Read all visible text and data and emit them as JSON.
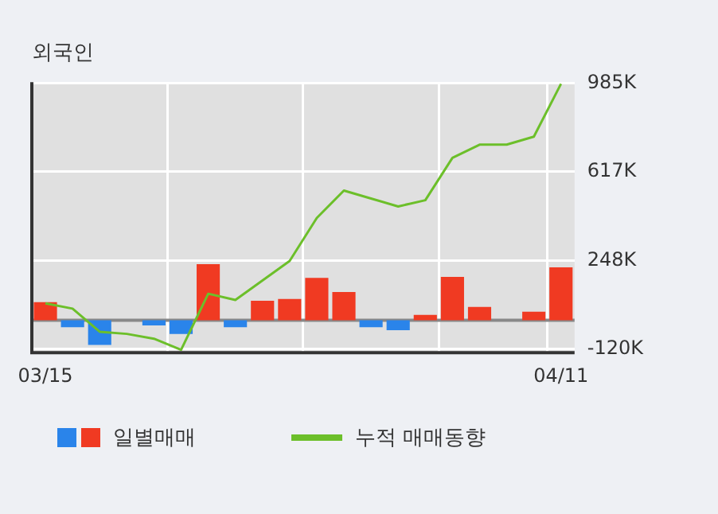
{
  "chart_data": {
    "type": "bar",
    "title": "외국인",
    "categories": [
      "03/15",
      null,
      null,
      null,
      null,
      null,
      null,
      null,
      null,
      null,
      null,
      null,
      null,
      null,
      null,
      null,
      null,
      null,
      null,
      "04/11"
    ],
    "series": [
      {
        "name": "일별매매",
        "values": [
          75,
          -29,
          -103,
          0,
          -22,
          -57,
          233,
          -29,
          81,
          88,
          176,
          117,
          -29,
          -42,
          22,
          180,
          55,
          0,
          35,
          220
        ],
        "colors": [
          "#f03a22",
          "#2a84ea",
          "#2a84ea",
          "#2a84ea",
          "#2a84ea",
          "#2a84ea",
          "#f03a22",
          "#2a84ea",
          "#f03a22",
          "#f03a22",
          "#f03a22",
          "#f03a22",
          "#2a84ea",
          "#2a84ea",
          "#f03a22",
          "#f03a22",
          "#f03a22",
          "#f03a22",
          "#f03a22",
          "#f03a22"
        ]
      },
      {
        "name": "누적 매매동향",
        "type": "line",
        "color": "#6cbf2a",
        "values": [
          70,
          48,
          -48,
          -57,
          -77,
          -123,
          110,
          84,
          165,
          246,
          425,
          539,
          506,
          473,
          499,
          675,
          730,
          730,
          763,
          983
        ]
      }
    ],
    "ylim": [
      -135,
      990
    ],
    "yticks": [
      {
        "value": -120,
        "label": "-120K"
      },
      {
        "value": 248,
        "label": "248K"
      },
      {
        "value": 617,
        "label": "617K"
      },
      {
        "value": 985,
        "label": "985K"
      }
    ],
    "ref_lines": [
      {
        "axis": "y",
        "value": 0,
        "color": "#888888"
      }
    ],
    "grid": true,
    "legend": "bottom",
    "marker": "none",
    "line_style": "solid"
  }
}
